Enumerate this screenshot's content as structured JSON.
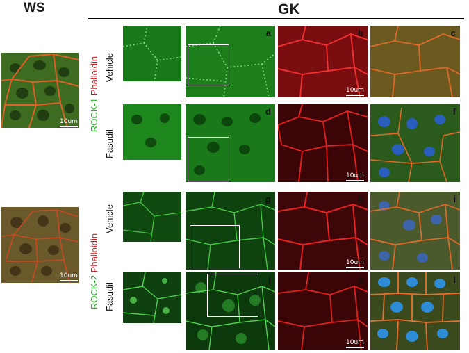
{
  "headers": {
    "ws": "WS",
    "gk": "GK"
  },
  "row_labels": {
    "rock1_stain": "ROCK-1",
    "rock2_stain": "ROCK-2",
    "phalloidin": "Phalloidin",
    "vehicle": "Vehicle",
    "fasudil": "Fasudil"
  },
  "panel_letters": [
    "a",
    "b",
    "c",
    "d",
    "e",
    "f",
    "g",
    "h",
    "i",
    "j",
    "k",
    "l"
  ],
  "scale_bar": "10um",
  "colors": {
    "rock_green": "#1bb31b",
    "phalloidin_red": "#e2141b",
    "merge_orange": "#c8642a",
    "nuclei_blue": "#2b5fd9",
    "background": "#ffffff"
  }
}
